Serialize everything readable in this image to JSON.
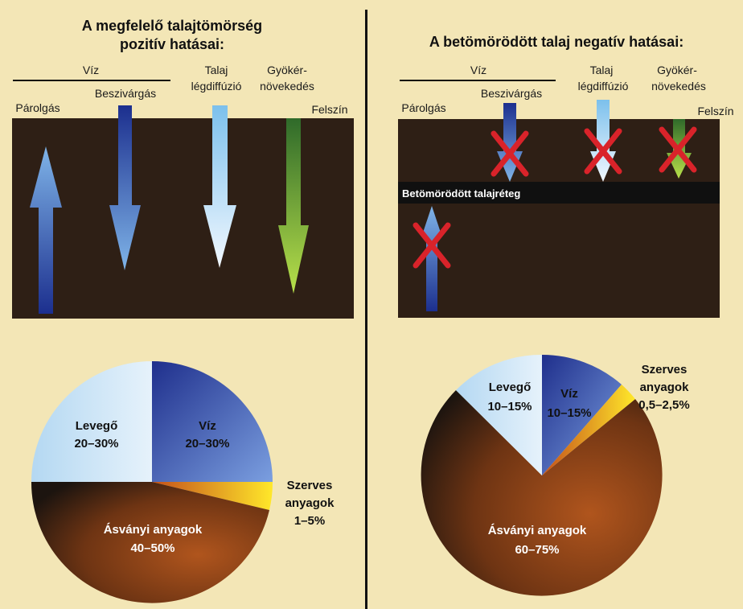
{
  "left": {
    "title_line1": "A megfelelő talajtömörség",
    "title_line2": "pozitív hatásai:",
    "label_viz": "Víz",
    "label_parolgas": "Párolgás",
    "label_beszivargas": "Beszivárgás",
    "label_talaj": "Talaj",
    "label_legdiffuzio": "légdiffúzió",
    "label_gyoker": "Gyökér-",
    "label_novekedes": "növekedés",
    "label_felszin": "Felszín",
    "pie": {
      "levego_name": "Levegő",
      "levego_value": "20–30%",
      "viz_name": "Víz",
      "viz_value": "20–30%",
      "szerves_name1": "Szerves",
      "szerves_name2": "anyagok",
      "szerves_value": "1–5%",
      "asvanyi_name": "Ásványi anyagok",
      "asvanyi_value": "40–50%"
    }
  },
  "right": {
    "title": "A betömörödött talaj negatív hatásai:",
    "label_viz": "Víz",
    "label_parolgas": "Párolgás",
    "label_beszivargas": "Beszivárgás",
    "label_talaj": "Talaj",
    "label_legdiffuzio": "légdiffúzió",
    "label_gyoker": "Gyökér-",
    "label_novekedes": "növekedés",
    "label_felszin": "Felszín",
    "compacted_layer": "Betömörödött talajréteg",
    "pie": {
      "levego_name": "Levegő",
      "levego_value": "10–15%",
      "viz_name": "Víz",
      "viz_value": "10–15%",
      "szerves_name1": "Szerves",
      "szerves_name2": "anyagok",
      "szerves_value": "0,5–2,5%",
      "asvanyi_name": "Ásványi anyagok",
      "asvanyi_value": "60–75%"
    }
  },
  "colors": {
    "background": "#f3e6b6",
    "soil": "#2e1f15",
    "compacted": "#101010",
    "cross": "#d9232a"
  }
}
